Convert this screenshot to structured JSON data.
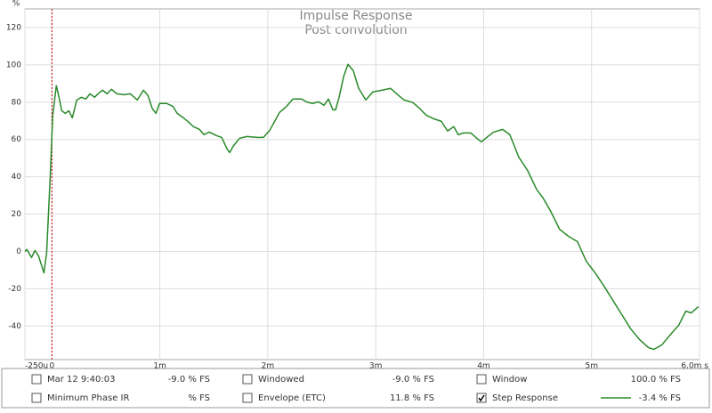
{
  "chart_data": {
    "type": "line",
    "title": "Impulse Response",
    "subtitle": "Post convolution",
    "y_unit": "%",
    "xlim": [
      -0.25,
      6.0
    ],
    "ylim": [
      -58,
      130
    ],
    "xticks": [
      {
        "value": -0.25,
        "label": "-250u"
      },
      0,
      {
        "value": 1,
        "label": "1m"
      },
      {
        "value": 2,
        "label": "2m"
      },
      {
        "value": 3,
        "label": "3m"
      },
      {
        "value": 4,
        "label": "4m"
      },
      {
        "value": 5,
        "label": "5m"
      },
      {
        "value": 6,
        "label": "6.0m s"
      }
    ],
    "yticks": [
      -40,
      -20,
      0,
      20,
      40,
      60,
      80,
      100,
      120
    ],
    "grid": true,
    "marker_x": 0,
    "marker_color": "#cc0000",
    "x": [
      -0.25,
      -0.231,
      -0.189,
      -0.157,
      -0.124,
      -0.074,
      -0.049,
      -0.016,
      0.008,
      0.041,
      0.066,
      0.091,
      0.124,
      0.157,
      0.189,
      0.231,
      0.272,
      0.313,
      0.354,
      0.395,
      0.437,
      0.47,
      0.511,
      0.552,
      0.601,
      0.667,
      0.725,
      0.791,
      0.848,
      0.89,
      0.931,
      0.964,
      0.997,
      1.063,
      1.12,
      1.161,
      1.219,
      1.269,
      1.31,
      1.367,
      1.409,
      1.458,
      1.524,
      1.573,
      1.623,
      1.647,
      1.68,
      1.738,
      1.804,
      1.903,
      1.96,
      2.018,
      2.109,
      2.175,
      2.232,
      2.315,
      2.356,
      2.413,
      2.471,
      2.521,
      2.562,
      2.603,
      2.628,
      2.661,
      2.702,
      2.743,
      2.792,
      2.842,
      2.908,
      2.974,
      3.056,
      3.138,
      3.204,
      3.262,
      3.344,
      3.402,
      3.468,
      3.534,
      3.608,
      3.666,
      3.723,
      3.764,
      3.814,
      3.88,
      3.946,
      3.979,
      4.028,
      4.094,
      4.176,
      4.242,
      4.325,
      4.407,
      4.489,
      4.555,
      4.621,
      4.703,
      4.786,
      4.868,
      4.951,
      5.033,
      5.115,
      5.198,
      5.28,
      5.362,
      5.445,
      5.527,
      5.577,
      5.651,
      5.733,
      5.807,
      5.873,
      5.923,
      5.99
    ],
    "series": [
      {
        "name": "Step Response",
        "color": "#2a8a2a",
        "values": [
          0,
          1,
          -3.3,
          0.5,
          -2.4,
          -11.5,
          -1,
          39.6,
          73,
          88.8,
          82.6,
          75.4,
          74,
          75.4,
          71.6,
          81.2,
          82.6,
          81.7,
          84.5,
          82.6,
          85,
          86.4,
          84.5,
          86.9,
          84.5,
          84,
          84.5,
          81.2,
          86.4,
          83.6,
          76.4,
          74,
          79.3,
          79.3,
          77.8,
          74,
          71.6,
          69.2,
          66.9,
          65.4,
          62.6,
          64,
          62.1,
          61.1,
          54.9,
          53,
          56.4,
          60.6,
          61.6,
          61.1,
          61.1,
          64.9,
          74.5,
          77.8,
          81.7,
          81.7,
          80.2,
          79.3,
          80.2,
          78.3,
          81.7,
          75.9,
          75.9,
          82.6,
          93.6,
          100.3,
          96.9,
          87.4,
          81.2,
          85.5,
          86.4,
          87.4,
          84,
          81.2,
          79.8,
          76.9,
          73,
          71.2,
          69.7,
          64.5,
          66.9,
          62.6,
          63.5,
          63.5,
          60.2,
          58.7,
          61.1,
          64,
          65.4,
          62.6,
          50.6,
          43.4,
          33.4,
          28.2,
          21.5,
          11.9,
          8.1,
          5.3,
          -5.3,
          -11.5,
          -18.6,
          -26.3,
          -33.9,
          -41.5,
          -47.3,
          -51.6,
          -52.5,
          -50.1,
          -44.4,
          -39.6,
          -32,
          -33,
          -29.6
        ]
      }
    ]
  },
  "legend_panel": {
    "items": [
      {
        "label": "Mar 12 9:40:03",
        "value": "-9.0 % FS",
        "checked": false,
        "color": "#33cc33"
      },
      {
        "label": "Windowed",
        "value": "-9.0 % FS",
        "checked": false,
        "color": "#33cc33"
      },
      {
        "label": "Window",
        "value": "100.0 % FS",
        "checked": false,
        "color": "#1a1acc"
      },
      {
        "label": "Minimum Phase IR",
        "value": "% FS",
        "checked": false,
        "color": "#999999"
      },
      {
        "label": "Envelope (ETC)",
        "value": "11.8 % FS",
        "checked": false,
        "color": "#2a8a2a"
      },
      {
        "label": "Step Response",
        "value": "-3.4 % FS",
        "checked": true,
        "color": "#2a8a2a"
      }
    ]
  }
}
